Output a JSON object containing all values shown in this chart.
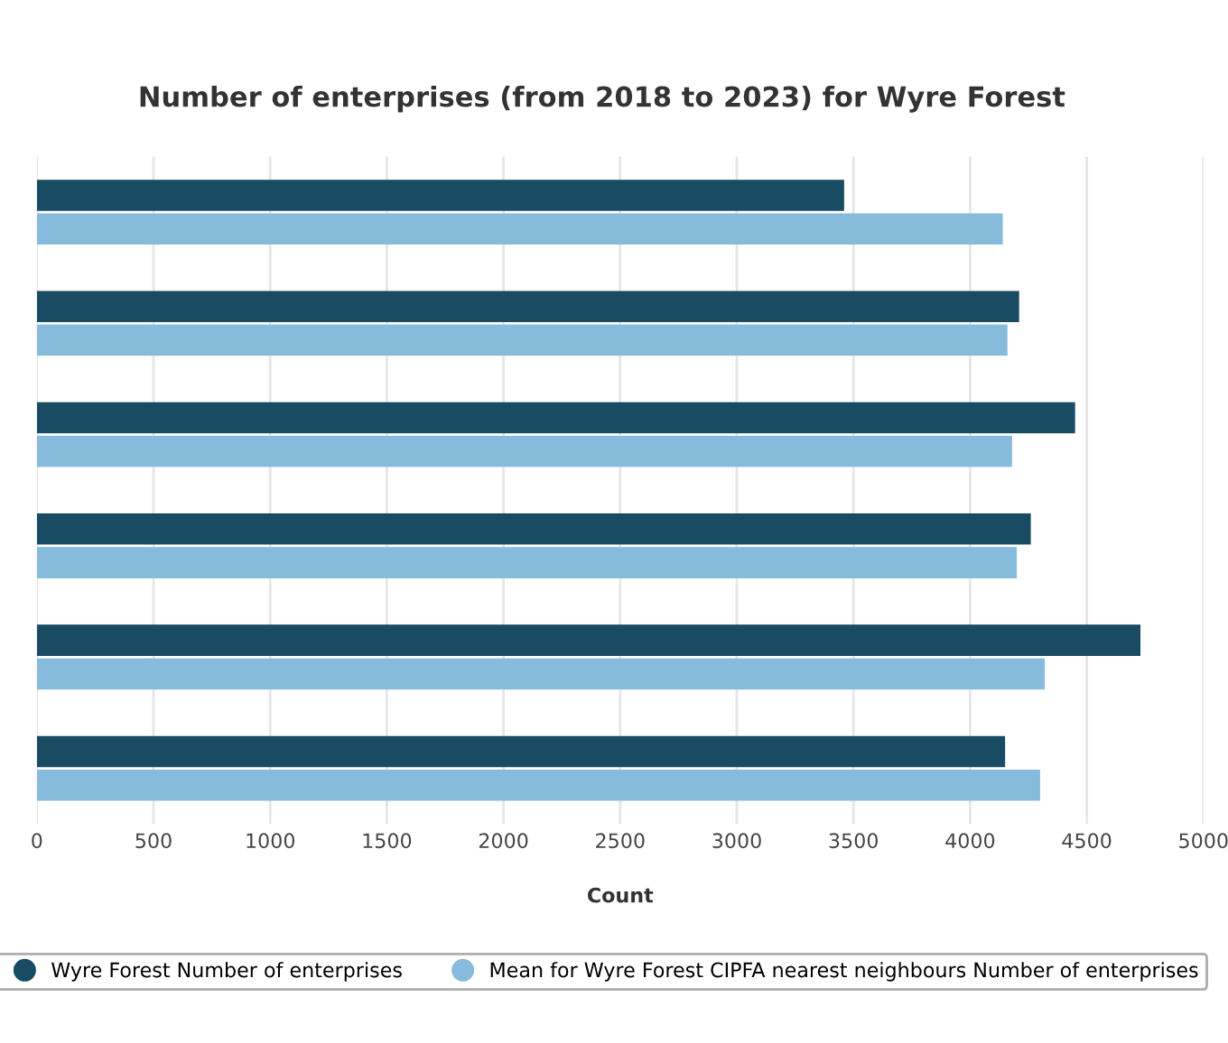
{
  "chart_data": {
    "type": "bar",
    "orientation": "horizontal",
    "title": "Number of enterprises (from 2018 to 2023) for Wyre Forest",
    "xlabel": "Count",
    "categories": [
      null,
      null,
      null,
      null,
      null,
      null
    ],
    "series": [
      {
        "name": "Wyre Forest Number of enterprises",
        "color": "#194b63",
        "values": [
          3460,
          4210,
          4450,
          4260,
          4730,
          4150
        ]
      },
      {
        "name": "Mean for Wyre Forest CIPFA nearest neighbours Number of enterprises",
        "color": "#87bbdb",
        "values": [
          4140,
          4160,
          4180,
          4200,
          4320,
          4300
        ]
      }
    ],
    "xlim": [
      0,
      5000
    ],
    "xticks": [
      0,
      500,
      1000,
      1500,
      2000,
      2500,
      3000,
      3500,
      4000,
      4500,
      5000
    ],
    "grid": "x",
    "legend": "bottom"
  }
}
